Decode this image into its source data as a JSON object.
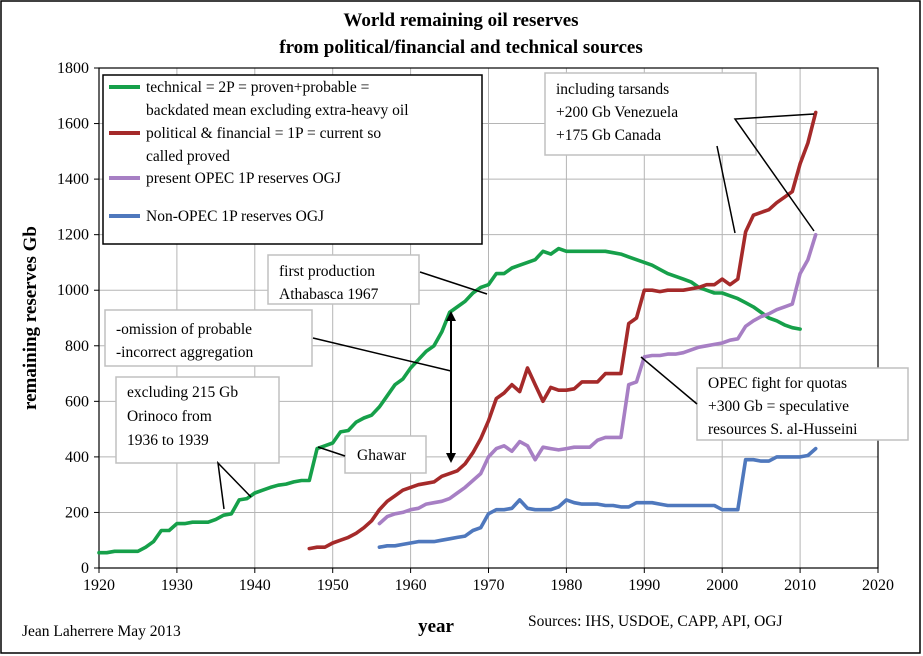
{
  "chart_data": {
    "type": "line",
    "title": [
      "World remaining oil reserves",
      "from political/financial and technical sources"
    ],
    "xlabel": "year",
    "ylabel": "remaining reserves Gb",
    "xlim": [
      1920,
      2020
    ],
    "ylim": [
      0,
      1800
    ],
    "xticks": [
      1920,
      1930,
      1940,
      1950,
      1960,
      1970,
      1980,
      1990,
      2000,
      2010,
      2020
    ],
    "yticks": [
      0,
      200,
      400,
      600,
      800,
      1000,
      1200,
      1400,
      1600,
      1800
    ],
    "grid": true,
    "legend_position": "top-left",
    "series": [
      {
        "name": "technical = 2P = proven+probable = backdated mean excluding extra-heavy oil",
        "color": "#16a04a",
        "x": [
          1920,
          1921,
          1922,
          1923,
          1924,
          1925,
          1926,
          1927,
          1928,
          1929,
          1930,
          1931,
          1932,
          1933,
          1934,
          1935,
          1936,
          1937,
          1938,
          1939,
          1940,
          1941,
          1942,
          1943,
          1944,
          1945,
          1946,
          1947,
          1948,
          1949,
          1950,
          1951,
          1952,
          1953,
          1954,
          1955,
          1956,
          1957,
          1958,
          1959,
          1960,
          1961,
          1962,
          1963,
          1964,
          1965,
          1966,
          1967,
          1968,
          1969,
          1970,
          1971,
          1972,
          1973,
          1974,
          1975,
          1976,
          1977,
          1978,
          1979,
          1980,
          1981,
          1982,
          1983,
          1984,
          1985,
          1986,
          1987,
          1988,
          1989,
          1990,
          1991,
          1992,
          1993,
          1994,
          1995,
          1996,
          1997,
          1998,
          1999,
          2000,
          2001,
          2002,
          2003,
          2004,
          2005,
          2006,
          2007,
          2008,
          2009,
          2010
        ],
        "y": [
          55,
          55,
          60,
          60,
          60,
          60,
          75,
          95,
          135,
          135,
          160,
          160,
          165,
          165,
          165,
          175,
          190,
          195,
          245,
          250,
          270,
          280,
          290,
          298,
          302,
          310,
          315,
          315,
          430,
          440,
          450,
          490,
          495,
          525,
          540,
          550,
          580,
          620,
          660,
          680,
          720,
          750,
          780,
          800,
          850,
          920,
          940,
          960,
          990,
          1010,
          1020,
          1060,
          1060,
          1080,
          1090,
          1100,
          1110,
          1140,
          1130,
          1150,
          1140,
          1140,
          1140,
          1140,
          1140,
          1140,
          1135,
          1130,
          1120,
          1110,
          1100,
          1090,
          1075,
          1060,
          1050,
          1040,
          1030,
          1010,
          1000,
          990,
          990,
          980,
          970,
          955,
          940,
          920,
          900,
          890,
          875,
          865,
          860
        ]
      },
      {
        "name": "political & financial = 1P = current so called proved",
        "color": "#a52a2a",
        "x": [
          1947,
          1948,
          1949,
          1950,
          1951,
          1952,
          1953,
          1954,
          1955,
          1956,
          1957,
          1958,
          1959,
          1960,
          1961,
          1962,
          1963,
          1964,
          1965,
          1966,
          1967,
          1968,
          1969,
          1970,
          1971,
          1972,
          1973,
          1974,
          1975,
          1976,
          1977,
          1978,
          1979,
          1980,
          1981,
          1982,
          1983,
          1984,
          1985,
          1986,
          1987,
          1988,
          1989,
          1990,
          1991,
          1992,
          1993,
          1994,
          1995,
          1996,
          1997,
          1998,
          1999,
          2000,
          2001,
          2002,
          2003,
          2004,
          2005,
          2006,
          2007,
          2008,
          2009,
          2010,
          2011,
          2012
        ],
        "y": [
          70,
          75,
          75,
          90,
          100,
          110,
          125,
          145,
          170,
          210,
          240,
          260,
          280,
          290,
          300,
          305,
          310,
          330,
          340,
          350,
          375,
          415,
          465,
          530,
          610,
          630,
          660,
          635,
          720,
          660,
          600,
          650,
          640,
          640,
          645,
          670,
          670,
          670,
          700,
          700,
          700,
          880,
          900,
          1000,
          1000,
          995,
          1000,
          1000,
          1000,
          1005,
          1010,
          1020,
          1020,
          1040,
          1020,
          1040,
          1210,
          1270,
          1280,
          1290,
          1315,
          1335,
          1355,
          1455,
          1530,
          1640
        ]
      },
      {
        "name": "present OPEC 1P reserves OGJ",
        "color": "#a77fc4",
        "x": [
          1956,
          1957,
          1958,
          1959,
          1960,
          1961,
          1962,
          1963,
          1964,
          1965,
          1966,
          1967,
          1968,
          1969,
          1970,
          1971,
          1972,
          1973,
          1974,
          1975,
          1976,
          1977,
          1978,
          1979,
          1980,
          1981,
          1982,
          1983,
          1984,
          1985,
          1986,
          1987,
          1988,
          1989,
          1990,
          1991,
          1992,
          1993,
          1994,
          1995,
          1996,
          1997,
          1998,
          1999,
          2000,
          2001,
          2002,
          2003,
          2004,
          2005,
          2006,
          2007,
          2008,
          2009,
          2010,
          2011,
          2012
        ],
        "y": [
          160,
          185,
          195,
          200,
          210,
          215,
          230,
          235,
          240,
          250,
          270,
          290,
          315,
          340,
          400,
          430,
          440,
          420,
          455,
          440,
          390,
          435,
          430,
          425,
          430,
          435,
          435,
          435,
          460,
          470,
          470,
          470,
          660,
          670,
          760,
          765,
          765,
          770,
          770,
          775,
          785,
          795,
          800,
          805,
          810,
          820,
          825,
          870,
          890,
          905,
          915,
          930,
          940,
          950,
          1060,
          1110,
          1200
        ]
      },
      {
        "name": "Non-OPEC 1P reserves OGJ",
        "color": "#4f78bd",
        "x": [
          1956,
          1957,
          1958,
          1959,
          1960,
          1961,
          1962,
          1963,
          1964,
          1965,
          1966,
          1967,
          1968,
          1969,
          1970,
          1971,
          1972,
          1973,
          1974,
          1975,
          1976,
          1977,
          1978,
          1979,
          1980,
          1981,
          1982,
          1983,
          1984,
          1985,
          1986,
          1987,
          1988,
          1989,
          1990,
          1991,
          1992,
          1993,
          1994,
          1995,
          1996,
          1997,
          1998,
          1999,
          2000,
          2001,
          2002,
          2003,
          2004,
          2005,
          2006,
          2007,
          2008,
          2009,
          2010,
          2011,
          2012
        ],
        "y": [
          75,
          80,
          80,
          85,
          90,
          95,
          95,
          95,
          100,
          105,
          110,
          115,
          135,
          145,
          195,
          210,
          210,
          215,
          245,
          215,
          210,
          210,
          210,
          220,
          245,
          235,
          230,
          230,
          230,
          225,
          225,
          220,
          220,
          235,
          235,
          235,
          230,
          225,
          225,
          225,
          225,
          225,
          225,
          225,
          210,
          210,
          210,
          390,
          390,
          385,
          385,
          400,
          400,
          400,
          400,
          405,
          430
        ]
      }
    ],
    "annotations": [
      {
        "id": "tarsands",
        "lines": [
          "including tarsands",
          "+200 Gb Venezuela",
          "+175 Gb Canada"
        ]
      },
      {
        "id": "athabasca",
        "lines": [
          "first production",
          "Athabasca 1967"
        ]
      },
      {
        "id": "omission",
        "lines": [
          "-omission of probable",
          "-incorrect aggregation"
        ]
      },
      {
        "id": "orinoco",
        "lines": [
          "excluding 215 Gb",
          "Orinoco from",
          "1936 to 1939"
        ]
      },
      {
        "id": "ghawar",
        "lines": [
          "Ghawar"
        ]
      },
      {
        "id": "opec",
        "lines": [
          "OPEC fight for quotas",
          "+300 Gb = speculative",
          "resources S. al-Husseini"
        ]
      }
    ],
    "author": "Jean Laherrere May 2013",
    "sources": "Sources: IHS, USDOE, CAPP, API, OGJ"
  }
}
